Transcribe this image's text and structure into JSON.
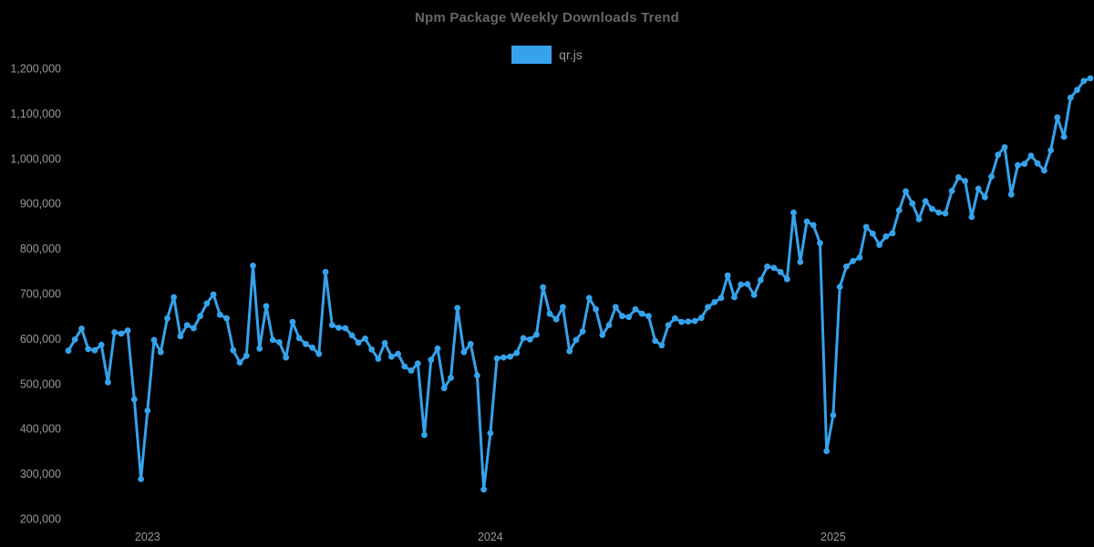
{
  "title": "Npm Package Weekly Downloads Trend",
  "legend": {
    "label": "qr.js",
    "swatch_color": "#36a2eb"
  },
  "colors": {
    "background": "#000000",
    "line": "#36a2eb",
    "point": "#36a2eb",
    "title_text": "#666666",
    "axis_text": "#999999"
  },
  "chart_data": {
    "type": "line",
    "title": "Npm Package Weekly Downloads Trend",
    "x_unit": "week",
    "grid": false,
    "legend_position": "top",
    "point_markers": true,
    "ylim": [
      200000,
      1200000
    ],
    "y_ticks": [
      {
        "value": 200000,
        "label": "200,000"
      },
      {
        "value": 300000,
        "label": "300,000"
      },
      {
        "value": 400000,
        "label": "400,000"
      },
      {
        "value": 500000,
        "label": "500,000"
      },
      {
        "value": 600000,
        "label": "600,000"
      },
      {
        "value": 700000,
        "label": "700,000"
      },
      {
        "value": 800000,
        "label": "800,000"
      },
      {
        "value": 900000,
        "label": "900,000"
      },
      {
        "value": 1000000,
        "label": "1,000,000"
      },
      {
        "value": 1100000,
        "label": "1,100,000"
      },
      {
        "value": 1200000,
        "label": "1,200,000"
      }
    ],
    "x_ticks": [
      {
        "label": "2023",
        "index": 12
      },
      {
        "label": "2024",
        "index": 64
      },
      {
        "label": "2025",
        "index": 116
      }
    ],
    "series": [
      {
        "name": "qr.js",
        "values": [
          573000,
          598000,
          622000,
          577000,
          574000,
          586000,
          503000,
          614000,
          611000,
          618000,
          465000,
          288000,
          440000,
          597000,
          570000,
          645000,
          692000,
          605000,
          630000,
          623000,
          650000,
          678000,
          698000,
          653000,
          645000,
          574000,
          547000,
          562000,
          762000,
          578000,
          672000,
          597000,
          592000,
          558000,
          637000,
          601000,
          588000,
          580000,
          566000,
          748000,
          630000,
          624000,
          623000,
          607000,
          591000,
          600000,
          576000,
          555000,
          590000,
          560000,
          566000,
          538000,
          529000,
          545000,
          386000,
          553000,
          578000,
          490000,
          513000,
          668000,
          570000,
          588000,
          518000,
          265000,
          390000,
          556000,
          558000,
          560000,
          568000,
          601000,
          598000,
          609000,
          714000,
          655000,
          643000,
          670000,
          572000,
          597000,
          616000,
          690000,
          665000,
          608000,
          630000,
          670000,
          650000,
          648000,
          665000,
          655000,
          650000,
          595000,
          585000,
          630000,
          645000,
          637000,
          638000,
          639000,
          646000,
          670000,
          681000,
          690000,
          740000,
          692000,
          720000,
          721000,
          697000,
          730000,
          760000,
          757000,
          748000,
          732000,
          880000,
          770000,
          860000,
          852000,
          812000,
          350000,
          430000,
          715000,
          760000,
          772000,
          780000,
          848000,
          833000,
          808000,
          827000,
          834000,
          885000,
          927000,
          900000,
          865000,
          905000,
          888000,
          880000,
          878000,
          928000,
          958000,
          950000,
          870000,
          933000,
          914000,
          960000,
          1008000,
          1025000,
          920000,
          985000,
          988000,
          1006000,
          989000,
          973000,
          1018000,
          1091000,
          1048000,
          1135000,
          1152000,
          1172000,
          1178000
        ]
      }
    ]
  }
}
